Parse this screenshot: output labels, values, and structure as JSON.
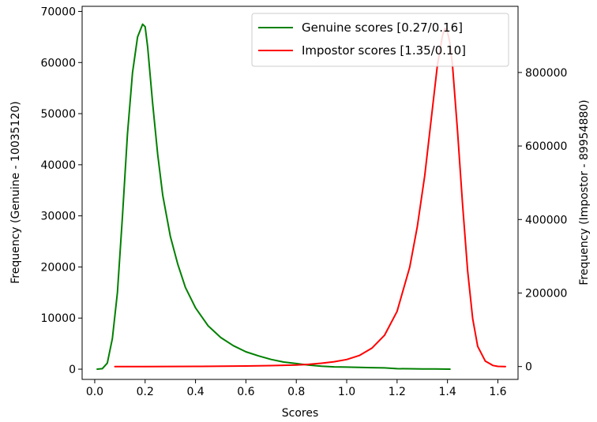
{
  "chart_data": {
    "type": "line",
    "xlabel": "Scores",
    "ylabel_left": "Frequency (Genuine - 10035120)",
    "ylabel_right": "Frequency (Impostor - 89954880)",
    "xlim": [
      -0.05,
      1.68
    ],
    "ylim_left": [
      -2000,
      71000
    ],
    "ylim_right": [
      -35000,
      980000
    ],
    "x_ticks": [
      "0.0",
      "0.2",
      "0.4",
      "0.6",
      "0.8",
      "1.0",
      "1.2",
      "1.4",
      "1.6"
    ],
    "y_ticks_left": [
      "0",
      "10000",
      "20000",
      "30000",
      "40000",
      "50000",
      "60000",
      "70000"
    ],
    "y_ticks_right": [
      "0",
      "200000",
      "400000",
      "600000",
      "800000"
    ],
    "grid": false,
    "legend_position": "top-right",
    "series": [
      {
        "name": "Genuine scores [0.27/0.16]",
        "axis": "left",
        "color": "#008000",
        "x": [
          0.01,
          0.03,
          0.05,
          0.07,
          0.09,
          0.11,
          0.13,
          0.15,
          0.17,
          0.19,
          0.2,
          0.21,
          0.23,
          0.25,
          0.27,
          0.3,
          0.33,
          0.36,
          0.4,
          0.45,
          0.5,
          0.55,
          0.6,
          0.65,
          0.7,
          0.75,
          0.8,
          0.85,
          0.9,
          0.95,
          1.0,
          1.05,
          1.1,
          1.15,
          1.2,
          1.25,
          1.3,
          1.35,
          1.41
        ],
        "y": [
          0,
          100,
          1200,
          6000,
          15000,
          30000,
          46000,
          58000,
          65000,
          67500,
          67000,
          63000,
          52000,
          42000,
          34000,
          26000,
          20500,
          16000,
          12000,
          8500,
          6200,
          4600,
          3400,
          2600,
          1900,
          1400,
          1100,
          800,
          600,
          450,
          400,
          350,
          300,
          250,
          100,
          80,
          60,
          40,
          0
        ]
      },
      {
        "name": "Impostor scores [1.35/0.10]",
        "axis": "right",
        "color": "#ff0000",
        "x": [
          0.08,
          0.2,
          0.4,
          0.6,
          0.7,
          0.8,
          0.85,
          0.9,
          0.95,
          1.0,
          1.05,
          1.1,
          1.15,
          1.2,
          1.25,
          1.28,
          1.31,
          1.34,
          1.36,
          1.38,
          1.39,
          1.4,
          1.41,
          1.42,
          1.44,
          1.46,
          1.48,
          1.5,
          1.52,
          1.55,
          1.58,
          1.6,
          1.63
        ],
        "y": [
          0,
          0,
          500,
          1500,
          2500,
          4000,
          6000,
          9000,
          13000,
          19000,
          30000,
          50000,
          85000,
          150000,
          270000,
          380000,
          520000,
          700000,
          820000,
          900000,
          920000,
          910000,
          880000,
          820000,
          640000,
          440000,
          260000,
          130000,
          55000,
          15000,
          3000,
          500,
          0
        ]
      }
    ]
  }
}
